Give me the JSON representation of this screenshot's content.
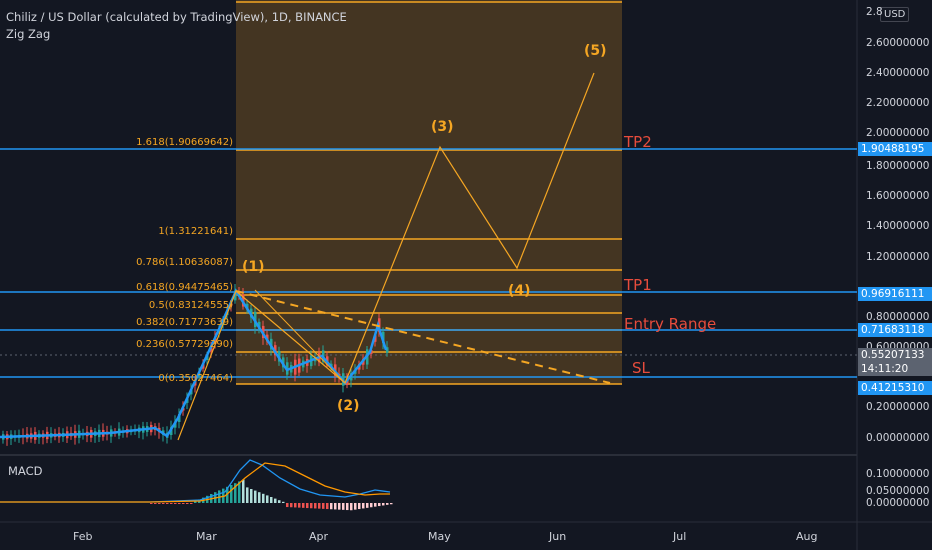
{
  "header": {
    "title": "Chiliz / US Dollar (calculated by TradingView), 1D, BINANCE",
    "indicator": "Zig Zag"
  },
  "currency_label": "USD",
  "macd_label": "MACD",
  "y_axis": [
    "2.8",
    "2.60000000",
    "2.40000000",
    "2.20000000",
    "2.00000000",
    "1.80000000",
    "1.60000000",
    "1.40000000",
    "1.20000000",
    "0.80000000",
    "0.60000000",
    "0.20000000",
    "0.00000000"
  ],
  "price_boxes": [
    {
      "value": "1.90488195",
      "color": "#2196f3"
    },
    {
      "value": "0.96916111",
      "color": "#2196f3"
    },
    {
      "value": "0.71683118",
      "color": "#2196f3"
    },
    {
      "value": "0.55207133",
      "color": "#5c6370"
    },
    {
      "value": "14:11:20",
      "color": "#5c6370"
    },
    {
      "value": "0.41215310",
      "color": "#2196f3"
    }
  ],
  "macd_axis": [
    "0.10000000",
    "0.05000000",
    "0.00000000"
  ],
  "x_axis": [
    "Feb",
    "Mar",
    "Apr",
    "May",
    "Jun",
    "Jul",
    "Aug"
  ],
  "fib_levels": [
    {
      "label": "1.618(1.90669642)"
    },
    {
      "label": "1(1.31221641)"
    },
    {
      "label": "0.786(1.10636087)"
    },
    {
      "label": "0.618(0.94475465)"
    },
    {
      "label": "0.5(0.83124555)"
    },
    {
      "label": "0.382(0.71773639)"
    },
    {
      "label": "0.236(0.57729290)"
    },
    {
      "label": "0(0.35027464)"
    }
  ],
  "waves": [
    "(1)",
    "(2)",
    "(3)",
    "(4)",
    "(5)"
  ],
  "tags": [
    "TP2",
    "TP1",
    "Entry Range",
    "SL"
  ],
  "colors": {
    "background": "#131722",
    "fib": "#f5a623",
    "horizontal": "#2196f3",
    "tag": "#e74c3c",
    "zigzag": "#2196f3",
    "macd": "#2196f3",
    "signal": "#ff9800"
  }
}
